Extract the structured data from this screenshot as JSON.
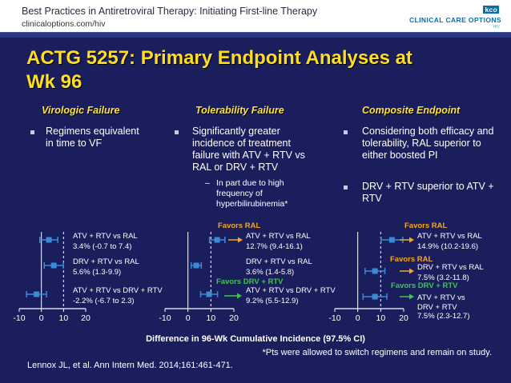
{
  "header": {
    "title": "Best Practices in Antiretroviral Therapy: Initiating First-line Therapy",
    "url": "clinicaloptions.com/hiv",
    "logo_text": "CLINICAL CARE OPTIONS",
    "logo_sub": "HIV"
  },
  "slide": {
    "title_line1": "ACTG 5257: Primary Endpoint Analyses at",
    "title_line2": "Wk 96"
  },
  "columns": [
    {
      "heading": "Virologic Failure",
      "bullets": [
        "Regimens equivalent in time to VF"
      ]
    },
    {
      "heading": "Tolerability Failure",
      "bullets": [
        "Significantly greater incidence of treatment failure with ATV + RTV vs RAL or DRV + RTV"
      ],
      "sub_bullet": "In part due to high frequency of hyperbilirubinemia*"
    },
    {
      "heading": "Composite Endpoint",
      "bullets": [
        "Considering both efficacy and tolerability, RAL superior to either boosted PI",
        "DRV + RTV superior to ATV + RTV"
      ]
    }
  ],
  "colors": {
    "background": "#1b1e5c",
    "title": "#ffde1e",
    "favors_ral": "#f5a623",
    "favors_drv": "#3cc84a",
    "ci_marker": "#3a8ad6"
  },
  "chart_data": [
    {
      "type": "forest",
      "panel": "Virologic Failure",
      "xlabel": "Difference in 96-Wk Cumulative Incidence (97.5% CI)",
      "xlim": [
        -10,
        20
      ],
      "xticks": [
        -10,
        0,
        10,
        20
      ],
      "reference_line": 10,
      "rows": [
        {
          "label": "ATV + RTV vs RAL",
          "value_text": "3.4% (-0.7 to 7.4)",
          "estimate": 3.4,
          "ci": [
            -0.7,
            7.4
          ]
        },
        {
          "label": "DRV + RTV vs RAL",
          "value_text": "5.6% (1.3-9.9)",
          "estimate": 5.6,
          "ci": [
            1.3,
            9.9
          ]
        },
        {
          "label": "ATV + RTV vs DRV + RTV",
          "value_text": "-2.2% (-6.7 to 2.3)",
          "estimate": -2.2,
          "ci": [
            -6.7,
            2.3
          ]
        }
      ]
    },
    {
      "type": "forest",
      "panel": "Tolerability Failure",
      "xlim": [
        -10,
        20
      ],
      "xticks": [
        -10,
        0,
        10,
        20
      ],
      "reference_line": 10,
      "rows": [
        {
          "label": "ATV + RTV vs RAL",
          "value_text": "12.7% (9.4-16.1)",
          "estimate": 12.7,
          "ci": [
            9.4,
            16.1
          ],
          "favors": "Favors RAL"
        },
        {
          "label": "DRV + RTV vs RAL",
          "value_text": "3.6% (1.4-5.8)",
          "estimate": 3.6,
          "ci": [
            1.4,
            5.8
          ]
        },
        {
          "label": "ATV + RTV vs DRV + RTV",
          "value_text": "9.2% (5.5-12.9)",
          "estimate": 9.2,
          "ci": [
            5.5,
            12.9
          ],
          "favors": "Favors DRV + RTV"
        }
      ]
    },
    {
      "type": "forest",
      "panel": "Composite Endpoint",
      "xlim": [
        -10,
        20
      ],
      "xticks": [
        -10,
        0,
        10,
        20
      ],
      "reference_line": 10,
      "rows": [
        {
          "label": "ATV + RTV vs RAL",
          "value_text": "14.9% (10.2-19.6)",
          "estimate": 14.9,
          "ci": [
            10.2,
            19.6
          ],
          "favors": "Favors RAL"
        },
        {
          "label": "DRV + RTV vs RAL",
          "value_text": "7.5% (3.2-11.8)",
          "estimate": 7.5,
          "ci": [
            3.2,
            11.8
          ],
          "favors": "Favors RAL"
        },
        {
          "label": "ATV + RTV vs DRV + RTV",
          "value_text": "7.5% (2.3-12.7)",
          "estimate": 7.5,
          "ci": [
            2.3,
            12.7
          ],
          "favors": "Favors DRV + RTV"
        }
      ]
    }
  ],
  "footnote": "*Pts were allowed to switch regimens and remain on study.",
  "citation": "Lennox JL, et al. Ann Intern Med. 2014;161:461-471."
}
